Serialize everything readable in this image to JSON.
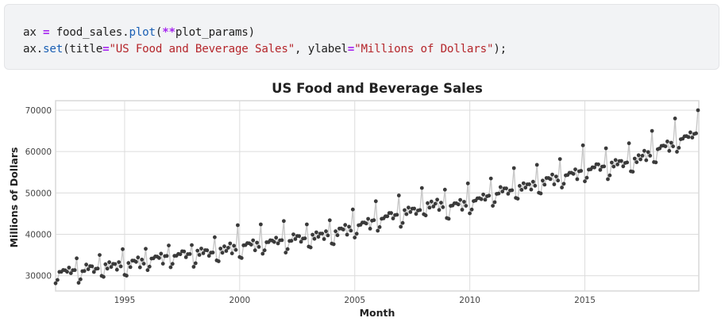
{
  "code_cell": {
    "line1": {
      "var": "ax ",
      "eq": "=",
      "mid": " food_sales.",
      "fn": "plot",
      "open": "(",
      "stars": "**",
      "arg": "plot_params)"
    },
    "line2": {
      "pre": "ax.",
      "fn": "set",
      "open": "(title",
      "eq1": "=",
      "str1": "\"US Food and Beverage Sales\"",
      "mid": ", ylabel",
      "eq2": "=",
      "str2": "\"Millions of Dollars\"",
      "close": ");"
    }
  },
  "chart_data": {
    "type": "line",
    "title": "US Food and Beverage Sales",
    "xlabel": "Month",
    "ylabel": "Millions of Dollars",
    "x_start": "1992-01",
    "x_end": "2019-12",
    "xlim": [
      1992.0,
      2019.95
    ],
    "ylim": [
      26300,
      72300
    ],
    "xticks": [
      1995,
      2000,
      2005,
      2010,
      2015
    ],
    "xtick_labels": [
      "1995",
      "2000",
      "2005",
      "2010",
      "2015"
    ],
    "yticks": [
      30000,
      40000,
      50000,
      60000,
      70000
    ],
    "ytick_labels": [
      "30000",
      "40000",
      "50000",
      "60000",
      "70000"
    ],
    "grid": true,
    "legend": "none",
    "line_color": "#c8c8c8",
    "marker_color": "#3a3a3a",
    "annual": [
      {
        "year": 1992,
        "base": 31000,
        "dec": 34200
      },
      {
        "year": 1993,
        "base": 31500,
        "dec": 35000
      },
      {
        "year": 1994,
        "base": 32300,
        "dec": 36400
      },
      {
        "year": 1995,
        "base": 33000,
        "dec": 36500
      },
      {
        "year": 1996,
        "base": 34200,
        "dec": 37300
      },
      {
        "year": 1997,
        "base": 35000,
        "dec": 37400
      },
      {
        "year": 1998,
        "base": 35500,
        "dec": 39300
      },
      {
        "year": 1999,
        "base": 36300,
        "dec": 42200
      },
      {
        "year": 2000,
        "base": 37300,
        "dec": 42400
      },
      {
        "year": 2001,
        "base": 38200,
        "dec": 43200
      },
      {
        "year": 2002,
        "base": 38800,
        "dec": 42400
      },
      {
        "year": 2003,
        "base": 39600,
        "dec": 43400
      },
      {
        "year": 2004,
        "base": 40800,
        "dec": 46000
      },
      {
        "year": 2005,
        "base": 42500,
        "dec": 48000
      },
      {
        "year": 2006,
        "base": 44200,
        "dec": 49400
      },
      {
        "year": 2007,
        "base": 45500,
        "dec": 51200
      },
      {
        "year": 2008,
        "base": 47000,
        "dec": 50800
      },
      {
        "year": 2009,
        "base": 47000,
        "dec": 52300
      },
      {
        "year": 2010,
        "base": 48500,
        "dec": 53500
      },
      {
        "year": 2011,
        "base": 50300,
        "dec": 56000
      },
      {
        "year": 2012,
        "base": 51500,
        "dec": 56800
      },
      {
        "year": 2013,
        "base": 53000,
        "dec": 58200
      },
      {
        "year": 2014,
        "base": 54500,
        "dec": 61500
      },
      {
        "year": 2015,
        "base": 56000,
        "dec": 60800
      },
      {
        "year": 2016,
        "base": 57000,
        "dec": 62000
      },
      {
        "year": 2017,
        "base": 58500,
        "dec": 65000
      },
      {
        "year": 2018,
        "base": 61000,
        "dec": 68000
      },
      {
        "year": 2019,
        "base": 63500,
        "dec": 70000
      }
    ],
    "monthly_offsets_jan_to_nov": [
      -2500,
      -2200,
      300,
      -200,
      800,
      200,
      400,
      900,
      -1000,
      300,
      -200
    ]
  }
}
